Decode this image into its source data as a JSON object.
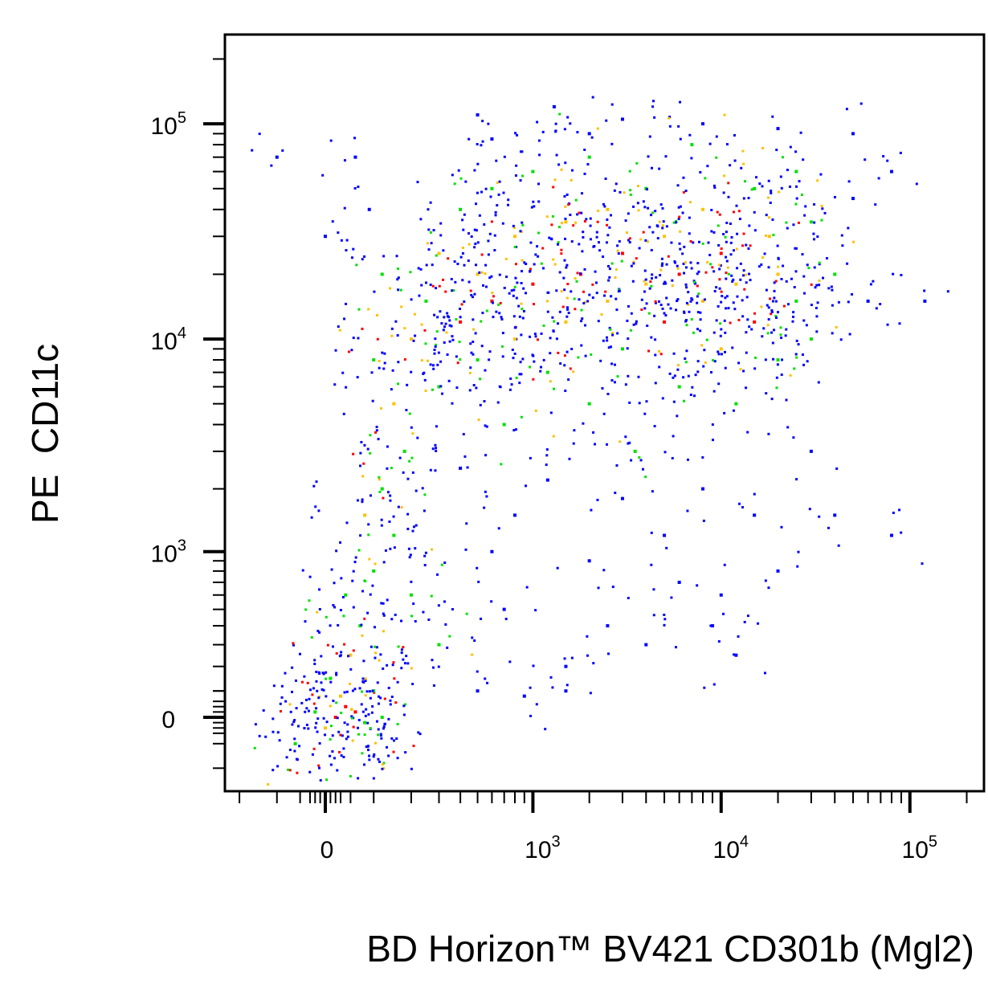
{
  "chart_data": {
    "type": "scatter",
    "subtype": "flow-cytometry-pseudocolor-dot-plot",
    "xlabel": "BD Horizon™ BV421 CD301b (Mgl2)",
    "ylabel": "PE  CD11c",
    "xscale": "biexponential",
    "yscale": "biexponential",
    "xlim": [
      -300,
      200000
    ],
    "ylim": [
      -900,
      250000
    ],
    "grid": false,
    "x_ticks": [
      {
        "value": 0,
        "base": "0",
        "exp": ""
      },
      {
        "value": 1000,
        "base": "10",
        "exp": "3"
      },
      {
        "value": 10000,
        "base": "10",
        "exp": "4"
      },
      {
        "value": 100000,
        "base": "10",
        "exp": "5"
      }
    ],
    "y_ticks": [
      {
        "value": 0,
        "base": "0",
        "exp": ""
      },
      {
        "value": 1000,
        "base": "10",
        "exp": "3"
      },
      {
        "value": 10000,
        "base": "10",
        "exp": "4"
      },
      {
        "value": 100000,
        "base": "10",
        "exp": "5"
      }
    ],
    "density_colors": {
      "low": "#0000ff",
      "medium": "#00e000",
      "high": "#ffc000",
      "highest": "#ff0000"
    },
    "points": [
      [
        20,
        0,
        3
      ],
      [
        40,
        40,
        3
      ],
      [
        0,
        -40,
        2
      ],
      [
        60,
        20,
        3
      ],
      [
        30,
        80,
        2
      ],
      [
        -20,
        20,
        1
      ],
      [
        80,
        -20,
        1
      ],
      [
        10,
        150,
        1
      ],
      [
        50,
        250,
        2
      ],
      [
        100,
        100,
        1
      ],
      [
        -60,
        -100,
        1
      ],
      [
        120,
        0,
        1
      ],
      [
        70,
        400,
        1
      ],
      [
        40,
        600,
        1
      ],
      [
        100,
        800,
        1
      ],
      [
        150,
        1200,
        1
      ],
      [
        80,
        1500,
        2
      ],
      [
        200,
        600,
        1
      ],
      [
        300,
        300,
        1
      ],
      [
        500,
        100,
        0
      ],
      [
        900,
        80,
        0
      ],
      [
        1500,
        100,
        0
      ],
      [
        120,
        2000,
        1
      ],
      [
        180,
        3000,
        1
      ],
      [
        150,
        5000,
        2
      ],
      [
        100,
        8000,
        1
      ],
      [
        120,
        20000,
        1
      ],
      [
        90,
        40000,
        0
      ],
      [
        60,
        70000,
        0
      ],
      [
        0,
        30000,
        0
      ],
      [
        200,
        10000,
        2
      ],
      [
        250,
        15000,
        1
      ],
      [
        300,
        6000,
        1
      ],
      [
        300,
        25000,
        2
      ],
      [
        400,
        12000,
        3
      ],
      [
        400,
        40000,
        1
      ],
      [
        500,
        8000,
        1
      ],
      [
        500,
        20000,
        2
      ],
      [
        600,
        15000,
        3
      ],
      [
        600,
        50000,
        1
      ],
      [
        700,
        4000,
        1
      ],
      [
        800,
        10000,
        2
      ],
      [
        800,
        30000,
        2
      ],
      [
        1000,
        18000,
        3
      ],
      [
        1000,
        60000,
        1
      ],
      [
        1200,
        7000,
        1
      ],
      [
        1500,
        12000,
        2
      ],
      [
        1500,
        35000,
        2
      ],
      [
        1800,
        20000,
        3
      ],
      [
        2000,
        5000,
        1
      ],
      [
        2000,
        70000,
        1
      ],
      [
        2500,
        15000,
        2
      ],
      [
        2500,
        40000,
        2
      ],
      [
        3000,
        9000,
        1
      ],
      [
        3000,
        25000,
        3
      ],
      [
        3500,
        3000,
        1
      ],
      [
        4000,
        18000,
        2
      ],
      [
        4000,
        50000,
        1
      ],
      [
        5000,
        12000,
        3
      ],
      [
        5000,
        30000,
        2
      ],
      [
        6000,
        6000,
        1
      ],
      [
        6000,
        20000,
        3
      ],
      [
        7000,
        80000,
        1
      ],
      [
        8000,
        15000,
        2
      ],
      [
        8000,
        40000,
        2
      ],
      [
        10000,
        9000,
        2
      ],
      [
        10000,
        25000,
        3
      ],
      [
        12000,
        5000,
        1
      ],
      [
        12000,
        18000,
        2
      ],
      [
        15000,
        12000,
        3
      ],
      [
        15000,
        50000,
        1
      ],
      [
        18000,
        30000,
        2
      ],
      [
        20000,
        8000,
        1
      ],
      [
        20000,
        20000,
        2
      ],
      [
        25000,
        15000,
        1
      ],
      [
        25000,
        60000,
        1
      ],
      [
        30000,
        10000,
        1
      ],
      [
        30000,
        35000,
        1
      ],
      [
        40000,
        20000,
        1
      ],
      [
        50000,
        45000,
        0
      ],
      [
        60000,
        15000,
        0
      ],
      [
        80000,
        60000,
        0
      ],
      [
        120000,
        15000,
        0
      ],
      [
        400,
        2500,
        0
      ],
      [
        800,
        1500,
        0
      ],
      [
        1200,
        2200,
        0
      ],
      [
        2000,
        900,
        0
      ],
      [
        3000,
        1800,
        0
      ],
      [
        5000,
        1200,
        0
      ],
      [
        6000,
        700,
        0
      ],
      [
        8000,
        2000,
        0
      ],
      [
        10000,
        600,
        0
      ],
      [
        15000,
        1500,
        0
      ],
      [
        20000,
        800,
        0
      ],
      [
        30000,
        3000,
        0
      ],
      [
        700,
        500,
        0
      ],
      [
        1500,
        200,
        0
      ],
      [
        4000,
        300,
        0
      ],
      [
        12000,
        250,
        0
      ],
      [
        600,
        1000,
        0
      ],
      [
        2500,
        400,
        0
      ],
      [
        9000,
        400,
        0
      ],
      [
        40000,
        1500,
        0
      ],
      [
        80000,
        1200,
        0
      ],
      [
        500,
        110000,
        0
      ],
      [
        1300,
        120000,
        0
      ],
      [
        3000,
        105000,
        0
      ],
      [
        8000,
        100000,
        0
      ],
      [
        2000,
        90000,
        0
      ],
      [
        600,
        85000,
        0
      ],
      [
        20000,
        95000,
        0
      ],
      [
        50000,
        90000,
        0
      ],
      [
        -100,
        70000,
        0
      ]
    ]
  }
}
